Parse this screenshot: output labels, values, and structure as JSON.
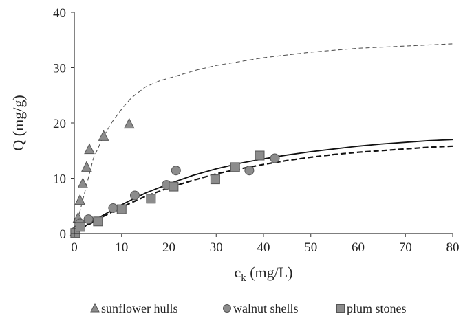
{
  "chart_data": {
    "type": "scatter",
    "title": "",
    "xlabel": "c",
    "xlabel_sub": "k",
    "xlabel_unit": " (mg/L)",
    "ylabel": "Q (mg/g)",
    "xlim": [
      0,
      80
    ],
    "ylim": [
      0,
      40
    ],
    "x_ticks": [
      0,
      10,
      20,
      30,
      40,
      50,
      60,
      70,
      80
    ],
    "y_ticks": [
      0,
      10,
      20,
      30,
      40
    ],
    "grid": false,
    "legend_position": "bottom",
    "marker_color": "#8c8c8c",
    "marker_edge": "#555555",
    "line_color": "#111111",
    "series": [
      {
        "name": "sunflower hulls",
        "marker": "triangle",
        "points": [
          {
            "x": 0.2,
            "y": 0.4
          },
          {
            "x": 0.8,
            "y": 2.8
          },
          {
            "x": 1.2,
            "y": 6.0
          },
          {
            "x": 1.8,
            "y": 9.0
          },
          {
            "x": 2.6,
            "y": 12.0
          },
          {
            "x": 3.2,
            "y": 15.2
          },
          {
            "x": 6.2,
            "y": 17.6
          },
          {
            "x": 11.6,
            "y": 19.8
          }
        ]
      },
      {
        "name": "walnut shells",
        "marker": "circle",
        "points": [
          {
            "x": 0.3,
            "y": 0.4
          },
          {
            "x": 1.2,
            "y": 1.8
          },
          {
            "x": 3.0,
            "y": 2.6
          },
          {
            "x": 8.2,
            "y": 4.6
          },
          {
            "x": 12.8,
            "y": 6.9
          },
          {
            "x": 19.5,
            "y": 8.8
          },
          {
            "x": 21.5,
            "y": 11.4
          },
          {
            "x": 37.0,
            "y": 11.4
          },
          {
            "x": 42.4,
            "y": 13.6
          }
        ]
      },
      {
        "name": "plum stones",
        "marker": "square",
        "points": [
          {
            "x": 0.2,
            "y": 0.1
          },
          {
            "x": 1.3,
            "y": 1.2
          },
          {
            "x": 5.0,
            "y": 2.2
          },
          {
            "x": 10.0,
            "y": 4.4
          },
          {
            "x": 16.2,
            "y": 6.3
          },
          {
            "x": 21.0,
            "y": 8.5
          },
          {
            "x": 29.8,
            "y": 9.8
          },
          {
            "x": 34.0,
            "y": 12.0
          },
          {
            "x": 39.2,
            "y": 14.1
          }
        ]
      }
    ],
    "fit_curves": [
      {
        "style": "thin-dashed",
        "points": [
          [
            0,
            0
          ],
          [
            2,
            6.8
          ],
          [
            4,
            13.5
          ],
          [
            6,
            17.3
          ],
          [
            8,
            20.2
          ],
          [
            10,
            22.5
          ],
          [
            12,
            24.5
          ],
          [
            15,
            26.5
          ],
          [
            18,
            27.6
          ],
          [
            22,
            28.6
          ],
          [
            26,
            29.6
          ],
          [
            30,
            30.4
          ],
          [
            40,
            31.8
          ],
          [
            50,
            32.8
          ],
          [
            60,
            33.5
          ],
          [
            70,
            33.9
          ],
          [
            80,
            34.3
          ]
        ]
      },
      {
        "style": "solid",
        "points": [
          [
            0,
            0
          ],
          [
            2,
            1.2
          ],
          [
            5,
            2.8
          ],
          [
            10,
            5.2
          ],
          [
            15,
            7.3
          ],
          [
            20,
            9.0
          ],
          [
            25,
            10.5
          ],
          [
            30,
            11.7
          ],
          [
            35,
            12.7
          ],
          [
            40,
            13.5
          ],
          [
            45,
            14.2
          ],
          [
            50,
            14.8
          ],
          [
            55,
            15.3
          ],
          [
            60,
            15.8
          ],
          [
            65,
            16.2
          ],
          [
            70,
            16.5
          ],
          [
            75,
            16.8
          ],
          [
            80,
            17.0
          ]
        ]
      },
      {
        "style": "dashed",
        "points": [
          [
            0,
            0
          ],
          [
            2,
            1.1
          ],
          [
            5,
            2.6
          ],
          [
            10,
            4.8
          ],
          [
            15,
            6.7
          ],
          [
            20,
            8.3
          ],
          [
            25,
            9.6
          ],
          [
            30,
            10.8
          ],
          [
            35,
            11.7
          ],
          [
            40,
            12.5
          ],
          [
            45,
            13.2
          ],
          [
            50,
            13.8
          ],
          [
            55,
            14.3
          ],
          [
            60,
            14.7
          ],
          [
            65,
            15.0
          ],
          [
            70,
            15.3
          ],
          [
            75,
            15.6
          ],
          [
            80,
            15.8
          ]
        ]
      }
    ]
  }
}
